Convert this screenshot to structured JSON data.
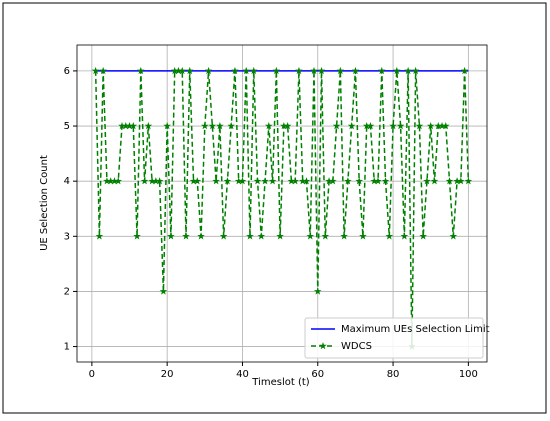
{
  "chart_data": {
    "type": "line",
    "xlabel": "Timeslot (t)",
    "ylabel": "UE Selection Count",
    "xlim": [
      -3.95,
      104.95
    ],
    "xticks": [
      0,
      20,
      40,
      60,
      80,
      100
    ],
    "ylim": [
      0.72,
      6.47
    ],
    "yticks": [
      1,
      2,
      3,
      4,
      5,
      6
    ],
    "grid": true,
    "legend": "lower right",
    "series": [
      {
        "name": "Maximum UEs Selection Limit",
        "color": "#0000ff",
        "style": "solid",
        "marker": "none",
        "x": [
          1,
          100
        ],
        "values": [
          6,
          6
        ]
      },
      {
        "name": "WDCS",
        "color": "#008000",
        "style": "dashed",
        "marker": "star",
        "x": [
          1,
          2,
          3,
          4,
          5,
          6,
          7,
          8,
          9,
          10,
          11,
          12,
          13,
          14,
          15,
          16,
          17,
          18,
          19,
          20,
          21,
          22,
          23,
          24,
          25,
          26,
          27,
          28,
          29,
          30,
          31,
          32,
          33,
          34,
          35,
          36,
          37,
          38,
          39,
          40,
          41,
          42,
          43,
          44,
          45,
          46,
          47,
          48,
          49,
          50,
          51,
          52,
          53,
          54,
          55,
          56,
          57,
          58,
          59,
          60,
          61,
          62,
          63,
          64,
          65,
          66,
          67,
          68,
          69,
          70,
          71,
          72,
          73,
          74,
          75,
          76,
          77,
          78,
          79,
          80,
          81,
          82,
          83,
          84,
          85,
          86,
          87,
          88,
          89,
          90,
          91,
          92,
          93,
          94,
          95,
          96,
          97,
          98,
          99,
          100
        ],
        "values": [
          6,
          3,
          6,
          4,
          4,
          4,
          4,
          5,
          5,
          5,
          5,
          3,
          6,
          4,
          5,
          4,
          4,
          4,
          2,
          5,
          3,
          6,
          6,
          6,
          3,
          6,
          4,
          4,
          3,
          5,
          6,
          5,
          4,
          5,
          3,
          4,
          5,
          6,
          4,
          4,
          6,
          3,
          6,
          4,
          3,
          4,
          5,
          4,
          6,
          3,
          5,
          5,
          4,
          4,
          6,
          4,
          4,
          3,
          6,
          2,
          6,
          3,
          4,
          4,
          5,
          6,
          3,
          4,
          5,
          6,
          4,
          3,
          5,
          5,
          4,
          4,
          6,
          4,
          3,
          5,
          6,
          5,
          3,
          6,
          1,
          6,
          5,
          3,
          4,
          5,
          4,
          5,
          5,
          5,
          4,
          3,
          4,
          4,
          6,
          4
        ]
      }
    ]
  }
}
